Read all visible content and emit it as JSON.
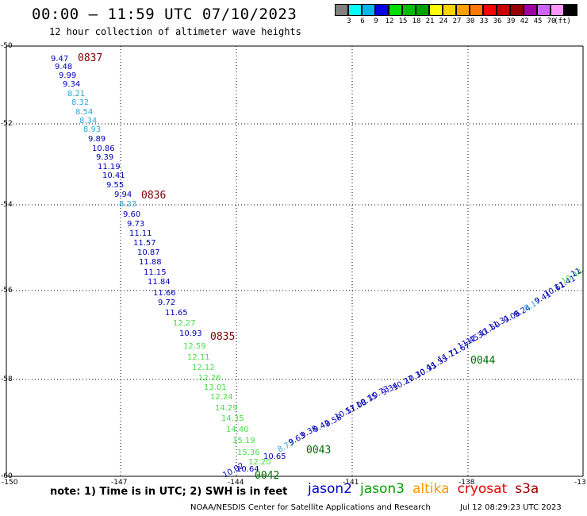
{
  "header": {
    "title": "00:00 – 11:59 UTC 07/10/2023",
    "subtitle": "12 hour collection of altimeter wave heights"
  },
  "scale": {
    "unit": "(ft)",
    "colors": [
      "#808080",
      "#00ffff",
      "#00b4f0",
      "#0000e6",
      "#00dc00",
      "#00be00",
      "#00a000",
      "#ffff00",
      "#ffd200",
      "#ffa000",
      "#ff7800",
      "#ff0000",
      "#c80000",
      "#960000",
      "#a000a0",
      "#c864ff",
      "#ff96ff",
      "#000000"
    ],
    "labels": [
      "3",
      "6",
      "9",
      "12",
      "15",
      "18",
      "21",
      "24",
      "27",
      "30",
      "33",
      "36",
      "39",
      "42",
      "45",
      "70"
    ]
  },
  "grid": {
    "lat_labels": [
      "-50",
      "-52",
      "-54",
      "-56",
      "-58",
      "-60"
    ],
    "lon_labels": [
      "-150",
      "-147",
      "-144",
      "-141",
      "-138",
      "-13"
    ]
  },
  "palette": {
    "blue": "#0000b4",
    "cyan": "#2ea8d8",
    "green": "#44e044",
    "time": "#7a0000",
    "time_green": "#006e00"
  },
  "track_labels": [
    {
      "t": "9.47",
      "c": "blue"
    },
    {
      "t": "9.48",
      "c": "blue"
    },
    {
      "t": "9.99",
      "c": "blue"
    },
    {
      "t": "9.34",
      "c": "blue"
    },
    {
      "t": "8.21",
      "c": "cyan"
    },
    {
      "t": "8.32",
      "c": "cyan"
    },
    {
      "t": "8.54",
      "c": "cyan"
    },
    {
      "t": "8.34",
      "c": "cyan"
    },
    {
      "t": "8.93",
      "c": "cyan"
    },
    {
      "t": "9.89",
      "c": "blue"
    },
    {
      "t": "10.86",
      "c": "blue"
    },
    {
      "t": "9.39",
      "c": "blue"
    },
    {
      "t": "11.19",
      "c": "blue"
    },
    {
      "t": "10.41",
      "c": "blue"
    },
    {
      "t": "9.55",
      "c": "blue"
    },
    {
      "t": "9.94",
      "c": "blue"
    },
    {
      "t": "8.23",
      "c": "cyan"
    },
    {
      "t": "9.60",
      "c": "blue"
    },
    {
      "t": "9.73",
      "c": "blue"
    },
    {
      "t": "11.11",
      "c": "blue"
    },
    {
      "t": "11.57",
      "c": "blue"
    },
    {
      "t": "10.87",
      "c": "blue"
    },
    {
      "t": "11.88",
      "c": "blue"
    },
    {
      "t": "11.15",
      "c": "blue"
    },
    {
      "t": "11.84",
      "c": "blue"
    },
    {
      "t": "11.66",
      "c": "blue"
    },
    {
      "t": "9.72",
      "c": "blue"
    },
    {
      "t": "11.65",
      "c": "blue"
    },
    {
      "t": "12.27",
      "c": "green"
    },
    {
      "t": "10.93",
      "c": "blue"
    },
    {
      "t": "12.59",
      "c": "green"
    },
    {
      "t": "12.11",
      "c": "green"
    },
    {
      "t": "12.12",
      "c": "green"
    },
    {
      "t": "12.26",
      "c": "green"
    },
    {
      "t": "13.01",
      "c": "green"
    },
    {
      "t": "12.24",
      "c": "green"
    },
    {
      "t": "14.29",
      "c": "green"
    },
    {
      "t": "14.35",
      "c": "green"
    },
    {
      "t": "14.40",
      "c": "green"
    },
    {
      "t": "15.19",
      "c": "green"
    },
    {
      "t": "15.36",
      "c": "green"
    },
    {
      "t": "10.65",
      "c": "blue"
    },
    {
      "t": "12.20",
      "c": "green"
    },
    {
      "t": "10.64",
      "c": "blue"
    },
    {
      "t": "10.02",
      "c": "blue"
    },
    {
      "t": "8.73",
      "c": "cyan"
    },
    {
      "t": "9.63",
      "c": "blue"
    },
    {
      "t": "9.38",
      "c": "blue"
    },
    {
      "t": "9.42",
      "c": "blue"
    },
    {
      "t": "9.58",
      "c": "blue"
    },
    {
      "t": "10.57",
      "c": "blue"
    },
    {
      "t": "11.08",
      "c": "blue"
    },
    {
      "t": "10.15",
      "c": "blue"
    },
    {
      "t": "10.73",
      "c": "blue"
    },
    {
      "t": "9.34",
      "c": "blue"
    },
    {
      "t": "10.27",
      "c": "blue"
    },
    {
      "t": "10.30",
      "c": "blue"
    },
    {
      "t": "10.95",
      "c": "blue"
    },
    {
      "t": "11.55",
      "c": "blue"
    },
    {
      "t": "11.71",
      "c": "blue"
    },
    {
      "t": "11.67",
      "c": "blue"
    },
    {
      "t": "11.45",
      "c": "blue"
    },
    {
      "t": "11.30",
      "c": "blue"
    },
    {
      "t": "11.50",
      "c": "blue"
    },
    {
      "t": "11.31",
      "c": "blue"
    },
    {
      "t": "9.06",
      "c": "blue"
    },
    {
      "t": "9.24",
      "c": "blue"
    },
    {
      "t": "8.17",
      "c": "cyan"
    },
    {
      "t": "9.41",
      "c": "blue"
    },
    {
      "t": "10.61",
      "c": "blue"
    },
    {
      "t": "11.41",
      "c": "blue"
    },
    {
      "t": "10.44",
      "c": "green"
    },
    {
      "t": "11.",
      "c": "blue"
    }
  ],
  "time_labels": [
    {
      "t": "0837",
      "c": "time"
    },
    {
      "t": "0836",
      "c": "time"
    },
    {
      "t": "0835",
      "c": "time"
    },
    {
      "t": "0042",
      "c": "time_green"
    },
    {
      "t": "0043",
      "c": "time_green"
    },
    {
      "t": "0044",
      "c": "time_green"
    }
  ],
  "note": "note: 1) Time is in UTC; 2) SWH is in feet",
  "legend": [
    {
      "name": "jason2",
      "color": "#0000c8"
    },
    {
      "name": "jason3",
      "color": "#00a000"
    },
    {
      "name": "altika",
      "color": "#ff9600"
    },
    {
      "name": "cryosat",
      "color": "#e60000"
    },
    {
      "name": "s3a",
      "color": "#a00000"
    }
  ],
  "footer": {
    "credit": "NOAA/NESDIS Center for Satellite Applications and Research",
    "timestamp": "Jul 12 08:29:23 UTC 2023"
  }
}
